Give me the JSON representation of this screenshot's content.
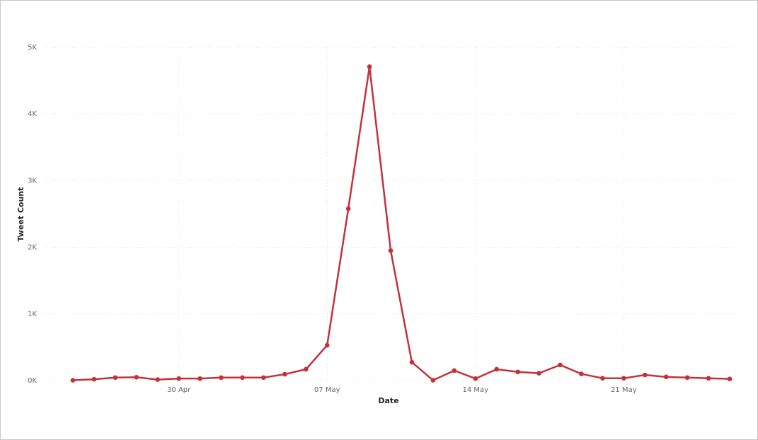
{
  "chart_data": {
    "type": "line",
    "x_label": "Date",
    "y_label": "Tweet Count",
    "x": [
      "25 Apr",
      "26 Apr",
      "27 Apr",
      "28 Apr",
      "29 Apr",
      "30 Apr",
      "01 May",
      "02 May",
      "03 May",
      "04 May",
      "05 May",
      "06 May",
      "07 May",
      "08 May",
      "09 May",
      "10 May",
      "11 May",
      "12 May",
      "13 May",
      "14 May",
      "15 May",
      "16 May",
      "17 May",
      "18 May",
      "19 May",
      "20 May",
      "21 May",
      "22 May",
      "23 May",
      "24 May",
      "25 May",
      "26 May"
    ],
    "values": [
      5,
      20,
      45,
      50,
      15,
      30,
      30,
      45,
      45,
      45,
      95,
      170,
      530,
      2580,
      4710,
      1950,
      275,
      5,
      150,
      30,
      170,
      130,
      110,
      235,
      100,
      35,
      35,
      85,
      55,
      45,
      35,
      25
    ],
    "color": "#c4313a",
    "xticks": [
      "30 Apr",
      "07 May",
      "14 May",
      "21 May"
    ],
    "ylim": [
      0,
      5000
    ],
    "yticks": [
      {
        "value": 0,
        "label": "0K"
      },
      {
        "value": 1000,
        "label": "1K"
      },
      {
        "value": 2000,
        "label": "2K"
      },
      {
        "value": 3000,
        "label": "3K"
      },
      {
        "value": 4000,
        "label": "4K"
      },
      {
        "value": 5000,
        "label": "5K"
      }
    ],
    "grid": true
  }
}
